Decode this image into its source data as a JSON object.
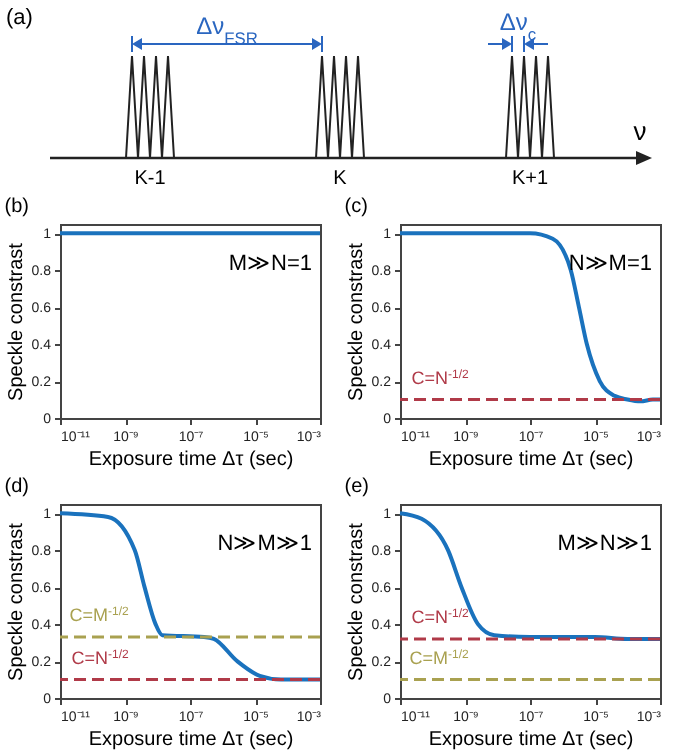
{
  "chart_data": [
    {
      "type": "other",
      "title": "(a)",
      "categories": [
        "K-1",
        "K",
        "K+1"
      ],
      "xlabel": "ν",
      "annotations": [
        "Δν$_{FSR}$",
        "Δν$_{c}$"
      ]
    },
    {
      "type": "line",
      "title": "(b)",
      "xlabel": "Exposure time Δτ (sec)",
      "ylabel": "Speckle constrast",
      "log": "x",
      "xlim": [
        1e-11,
        0.001
      ],
      "ylim": [
        0,
        1.05
      ],
      "xticks": [
        {
          "value": 1e-11,
          "label": "10⁻¹¹"
        },
        {
          "value": 1e-09,
          "label": "10⁻⁹"
        },
        {
          "value": 1e-07,
          "label": "10⁻⁷"
        },
        {
          "value": 1e-05,
          "label": "10⁻⁵"
        },
        {
          "value": 0.001,
          "label": "10⁻³"
        }
      ],
      "yticks": [
        0,
        0.2,
        0.4,
        0.6,
        0.8,
        1
      ],
      "annotations": [
        "M≫N=1"
      ],
      "series": [
        {
          "color": "#1a72bd",
          "x": [
            1e-11,
            1e-07,
            0.001
          ],
          "values": [
            1,
            1,
            1
          ]
        }
      ]
    },
    {
      "type": "line",
      "title": "(c)",
      "xlabel": "Exposure time Δτ (sec)",
      "ylabel": "Speckle constrast",
      "log": "x",
      "xlim": [
        1e-11,
        0.001
      ],
      "ylim": [
        0,
        1.05
      ],
      "xticks": [
        {
          "value": 1e-11,
          "label": "10⁻¹¹"
        },
        {
          "value": 1e-09,
          "label": "10⁻⁹"
        },
        {
          "value": 1e-07,
          "label": "10⁻⁷"
        },
        {
          "value": 1e-05,
          "label": "10⁻⁵"
        },
        {
          "value": 0.001,
          "label": "10⁻³"
        }
      ],
      "yticks": [
        0,
        0.2,
        0.4,
        0.6,
        0.8,
        1
      ],
      "annotations": [
        "N≫M=1"
      ],
      "ref_lines": [
        {
          "axis": "y",
          "value": 0.1,
          "label": "C=N$^{-1/2}$",
          "color": "#b03a48",
          "line_style": "dashed"
        }
      ],
      "series": [
        {
          "color": "#1a72bd",
          "x": [
            1e-11,
            1e-07,
            5e-07,
            1.8e-06,
            3.2e-06,
            5.6e-06,
            1.4e-05,
            4e-05,
            0.0001,
            0.00025,
            0.0006,
            0.001
          ],
          "values": [
            1,
            1,
            0.97,
            0.8,
            0.6,
            0.4,
            0.2,
            0.12,
            0.1,
            0.09,
            0.1,
            0.1
          ]
        }
      ]
    },
    {
      "type": "line",
      "title": "(d)",
      "xlabel": "Exposure time Δτ (sec)",
      "ylabel": "Speckle constrast",
      "log": "x",
      "xlim": [
        1e-11,
        0.001
      ],
      "ylim": [
        0,
        1.05
      ],
      "xticks": [
        {
          "value": 1e-11,
          "label": "10⁻¹¹"
        },
        {
          "value": 1e-09,
          "label": "10⁻⁹"
        },
        {
          "value": 1e-07,
          "label": "10⁻⁷"
        },
        {
          "value": 1e-05,
          "label": "10⁻⁵"
        },
        {
          "value": 0.001,
          "label": "10⁻³"
        }
      ],
      "yticks": [
        0,
        0.2,
        0.4,
        0.6,
        0.8,
        1
      ],
      "annotations": [
        "N≫M≫1"
      ],
      "ref_lines": [
        {
          "axis": "y",
          "value": 0.33,
          "label": "C=M$^{-1/2}$",
          "color": "#a9a150",
          "line_style": "dashed"
        },
        {
          "axis": "y",
          "value": 0.1,
          "label": "C=N$^{-1/2}$",
          "color": "#b03a48",
          "line_style": "dashed"
        }
      ],
      "series": [
        {
          "color": "#1a72bd",
          "x": [
            1e-11,
            3e-10,
            2e-09,
            4e-09,
            8.7e-09,
            1.4e-08,
            2.7e-07,
            5.4e-07,
            2.8e-06,
            1.4e-05,
            6.3e-05,
            0.001
          ],
          "values": [
            1,
            0.98,
            0.8,
            0.6,
            0.4,
            0.34,
            0.33,
            0.32,
            0.2,
            0.12,
            0.1,
            0.1
          ]
        }
      ]
    },
    {
      "type": "line",
      "title": "(e)",
      "xlabel": "Exposure time Δτ (sec)",
      "ylabel": "Speckle constrast",
      "log": "x",
      "xlim": [
        1e-11,
        0.001
      ],
      "ylim": [
        0,
        1.05
      ],
      "xticks": [
        {
          "value": 1e-11,
          "label": "10⁻¹¹"
        },
        {
          "value": 1e-09,
          "label": "10⁻⁹"
        },
        {
          "value": 1e-07,
          "label": "10⁻⁷"
        },
        {
          "value": 1e-05,
          "label": "10⁻⁵"
        },
        {
          "value": 0.001,
          "label": "10⁻³"
        }
      ],
      "yticks": [
        0,
        0.2,
        0.4,
        0.6,
        0.8,
        1
      ],
      "annotations": [
        "M≫N≫1"
      ],
      "ref_lines": [
        {
          "axis": "y",
          "value": 0.32,
          "label": "C=N$^{-1/2}$",
          "color": "#b03a48",
          "line_style": "dashed"
        },
        {
          "axis": "y",
          "value": 0.1,
          "label": "C=M$^{-1/2}$",
          "color": "#a9a150",
          "line_style": "dashed"
        }
      ],
      "series": [
        {
          "color": "#1a72bd",
          "x": [
            1e-11,
            4.6e-11,
            3e-10,
            7.8e-10,
            2.5e-09,
            8e-09,
            1e-07,
            1e-05,
            0.0001,
            0.001
          ],
          "values": [
            1,
            0.97,
            0.8,
            0.6,
            0.4,
            0.34,
            0.33,
            0.33,
            0.32,
            0.32
          ]
        }
      ]
    }
  ]
}
